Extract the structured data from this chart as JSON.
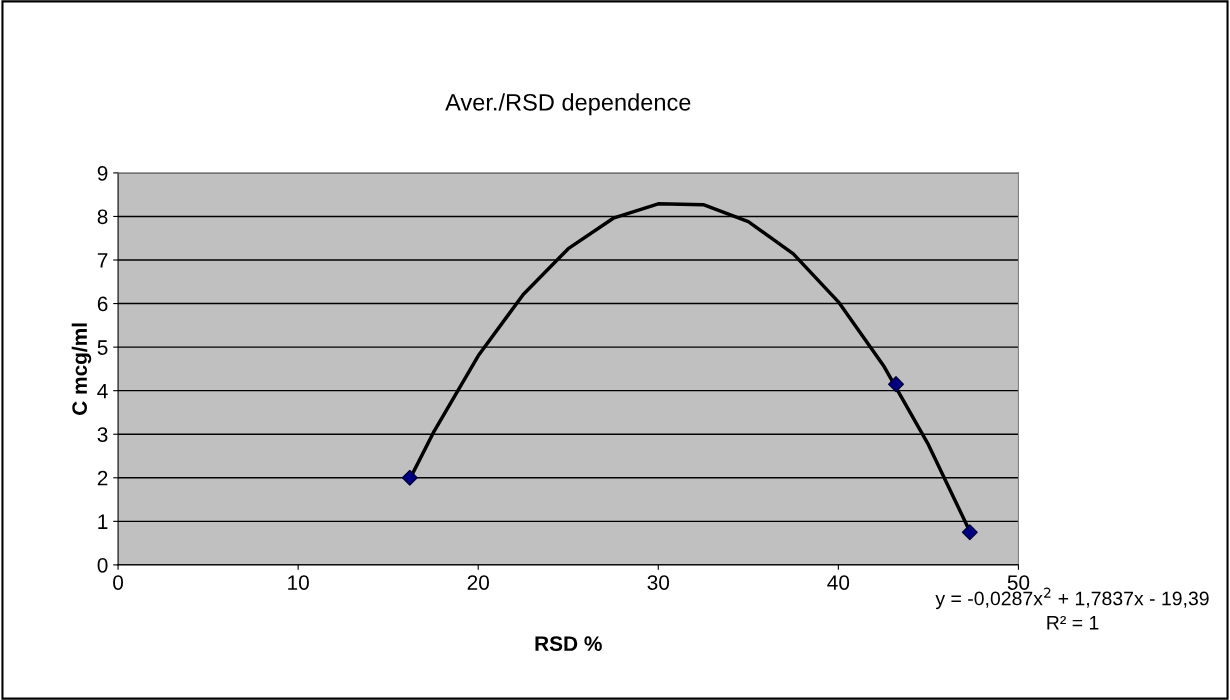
{
  "chart_data": {
    "type": "scatter",
    "title": "Aver./RSD dependence",
    "xlabel": "RSD %",
    "ylabel": "C mcg/ml",
    "xlim": [
      0,
      50
    ],
    "xticks": [
      0,
      10,
      20,
      30,
      40,
      50
    ],
    "ylim": [
      0,
      9
    ],
    "yticks": [
      0,
      1,
      2,
      3,
      4,
      5,
      6,
      7,
      8,
      9
    ],
    "grid": "y",
    "legend": false,
    "series": [
      {
        "type": "line",
        "color": "#000000",
        "marker": "none",
        "line_style": "solid",
        "x": [
          16.2,
          17.5,
          20,
          22.5,
          25,
          27.5,
          30,
          32.5,
          35,
          37.5,
          40,
          42.5,
          45,
          47.3
        ],
        "values": [
          1.97,
          3.03,
          4.8,
          6.21,
          7.26,
          7.96,
          8.29,
          8.27,
          7.88,
          7.14,
          6.04,
          4.58,
          2.76,
          0.77
        ]
      },
      {
        "color": "#000080",
        "marker": "diamond",
        "x": [
          16.2,
          43.2,
          47.3
        ],
        "values": [
          2.0,
          4.15,
          0.75
        ]
      }
    ],
    "annotations": [
      "y = -0,0287x$^{2}$ + 1,7837x - 19,39",
      "R² = 1"
    ]
  }
}
